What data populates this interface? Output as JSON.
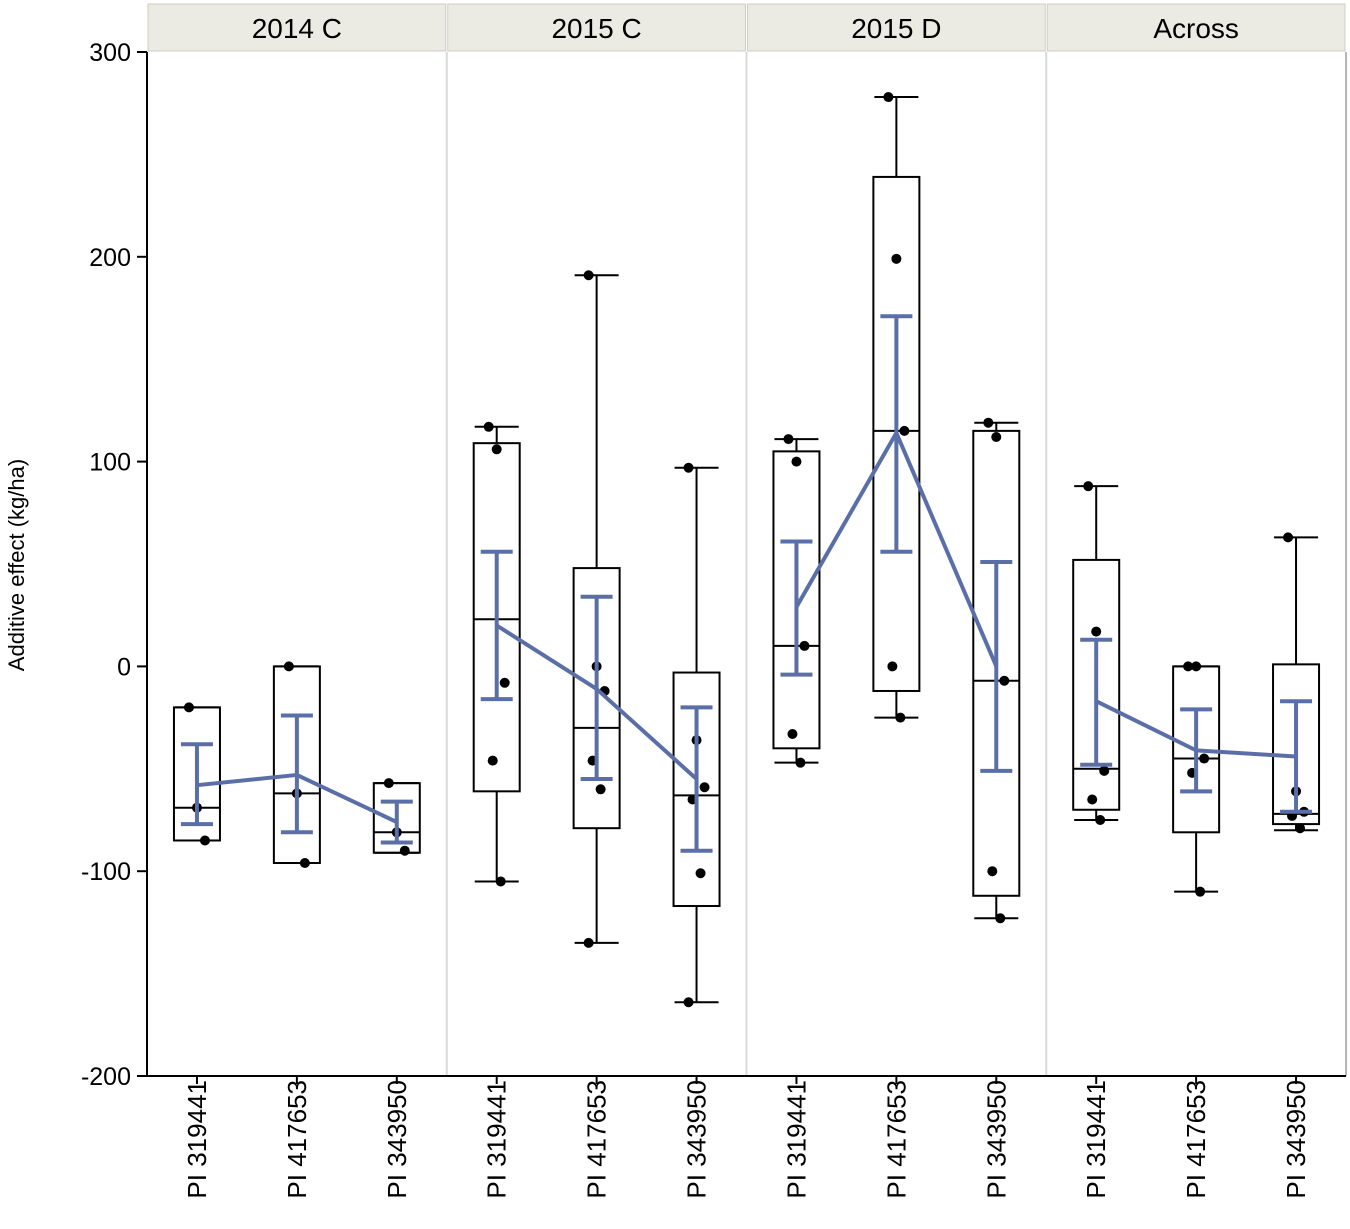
{
  "chart_data": {
    "type": "box",
    "ylabel": "Additive effect (kg/ha)",
    "xlabel": "",
    "ylim": [
      -200,
      300
    ],
    "yticks": [
      300,
      200,
      100,
      0,
      -100,
      -200
    ],
    "categories": [
      "PI 319441",
      "PI 417653",
      "PI 343950"
    ],
    "colors": {
      "mean_line": "#5a6fa8",
      "box": "#000000",
      "strip": "#ecebe3",
      "divider": "#d9d9d9"
    },
    "panels": [
      {
        "label": "2014 C",
        "groups": [
          {
            "category": "PI 319441",
            "min": -85,
            "q1": -85,
            "median": -69,
            "q3": -20,
            "max": -20,
            "mean": -58,
            "ci": [
              -77,
              -38
            ],
            "points": [
              -20,
              -69,
              -85
            ]
          },
          {
            "category": "PI 417653",
            "min": -96,
            "q1": -96,
            "median": -62,
            "q3": 0,
            "max": 0,
            "mean": -53,
            "ci": [
              -81,
              -24
            ],
            "points": [
              0,
              -62,
              -96
            ]
          },
          {
            "category": "PI 343950",
            "min": -91,
            "q1": -91,
            "median": -81,
            "q3": -57,
            "max": -57,
            "mean": -76,
            "ci": [
              -86,
              -66
            ],
            "points": [
              -57,
              -81,
              -90
            ]
          }
        ]
      },
      {
        "label": "2015 C",
        "groups": [
          {
            "category": "PI 319441",
            "min": -105,
            "q1": -61,
            "median": 23,
            "q3": 109,
            "max": 117,
            "mean": 20,
            "ci": [
              -16,
              56
            ],
            "points": [
              117,
              106,
              -8,
              -46,
              -105
            ]
          },
          {
            "category": "PI 417653",
            "min": -135,
            "q1": -79,
            "median": -30,
            "q3": 48,
            "max": 191,
            "mean": -11,
            "ci": [
              -55,
              34
            ],
            "points": [
              191,
              0,
              -12,
              -46,
              -60,
              -135
            ]
          },
          {
            "category": "PI 343950",
            "min": -164,
            "q1": -117,
            "median": -63,
            "q3": -3,
            "max": 97,
            "mean": -55,
            "ci": [
              -90,
              -20
            ],
            "points": [
              97,
              -36,
              -59,
              -65,
              -101,
              -164
            ]
          }
        ]
      },
      {
        "label": "2015 D",
        "groups": [
          {
            "category": "PI 319441",
            "min": -47,
            "q1": -40,
            "median": 10,
            "q3": 105,
            "max": 111,
            "mean": 29,
            "ci": [
              -4,
              61
            ],
            "points": [
              111,
              100,
              10,
              -33,
              -47
            ]
          },
          {
            "category": "PI 417653",
            "min": -25,
            "q1": -12,
            "median": 115,
            "q3": 239,
            "max": 278,
            "mean": 114,
            "ci": [
              56,
              171
            ],
            "points": [
              278,
              199,
              115,
              0,
              -25
            ]
          },
          {
            "category": "PI 343950",
            "min": -123,
            "q1": -112,
            "median": -7,
            "q3": 115,
            "max": 119,
            "mean": 0,
            "ci": [
              -51,
              51
            ],
            "points": [
              119,
              112,
              -7,
              -100,
              -123
            ]
          }
        ]
      },
      {
        "label": "Across",
        "groups": [
          {
            "category": "PI 319441",
            "min": -75,
            "q1": -70,
            "median": -50,
            "q3": 52,
            "max": 88,
            "mean": -17,
            "ci": [
              -48,
              13
            ],
            "points": [
              88,
              17,
              -51,
              -65,
              -75
            ]
          },
          {
            "category": "PI 417653",
            "min": -110,
            "q1": -81,
            "median": -45,
            "q3": 0,
            "max": 0,
            "mean": -41,
            "ci": [
              -61,
              -21
            ],
            "points": [
              0,
              0,
              -45,
              -52,
              -110
            ]
          },
          {
            "category": "PI 343950",
            "min": -80,
            "q1": -77,
            "median": -72,
            "q3": 1,
            "max": 63,
            "mean": -44,
            "ci": [
              -71,
              -17
            ],
            "points": [
              63,
              -61,
              -71,
              -73,
              -79
            ]
          }
        ]
      }
    ]
  }
}
